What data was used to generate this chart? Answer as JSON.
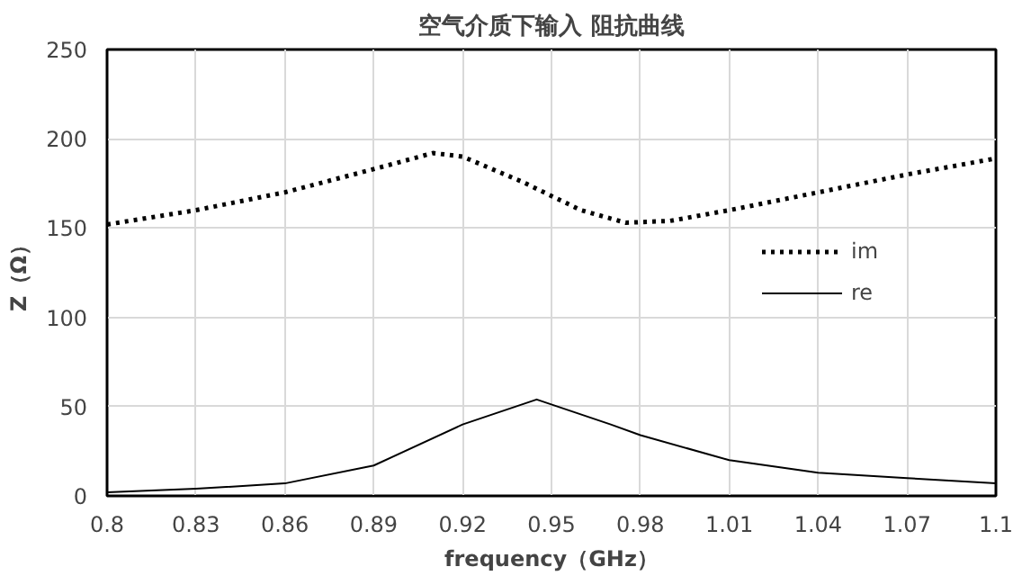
{
  "chart_data": {
    "type": "line",
    "title": "空气介质下输入 阻抗曲线",
    "xlabel": "frequency（GHz）",
    "ylabel": "Z（Ω）",
    "xlim": [
      0.8,
      1.1
    ],
    "xticks": [
      0.8,
      0.83,
      0.86,
      0.89,
      0.92,
      0.95,
      0.98,
      1.01,
      1.04,
      1.07,
      1.1
    ],
    "ylim": [
      0,
      250
    ],
    "yticks": [
      0,
      50,
      100,
      150,
      200,
      250
    ],
    "grid": true,
    "legend": "right",
    "marker": "none",
    "series": [
      {
        "name": "im",
        "color": "#000000",
        "line_style": "dotted",
        "x": [
          0.8,
          0.83,
          0.86,
          0.89,
          0.91,
          0.92,
          0.94,
          0.96,
          0.975,
          0.99,
          1.01,
          1.04,
          1.07,
          1.1
        ],
        "values": [
          152,
          160,
          170,
          183,
          192,
          190,
          176,
          160,
          153,
          154,
          160,
          170,
          180,
          189
        ]
      },
      {
        "name": "re",
        "color": "#000000",
        "line_style": "solid",
        "x": [
          0.8,
          0.83,
          0.86,
          0.89,
          0.92,
          0.945,
          0.97,
          0.98,
          1.01,
          1.04,
          1.07,
          1.1
        ],
        "values": [
          2,
          4,
          7,
          17,
          40,
          54,
          40,
          34,
          20,
          13,
          10,
          7
        ]
      }
    ]
  }
}
